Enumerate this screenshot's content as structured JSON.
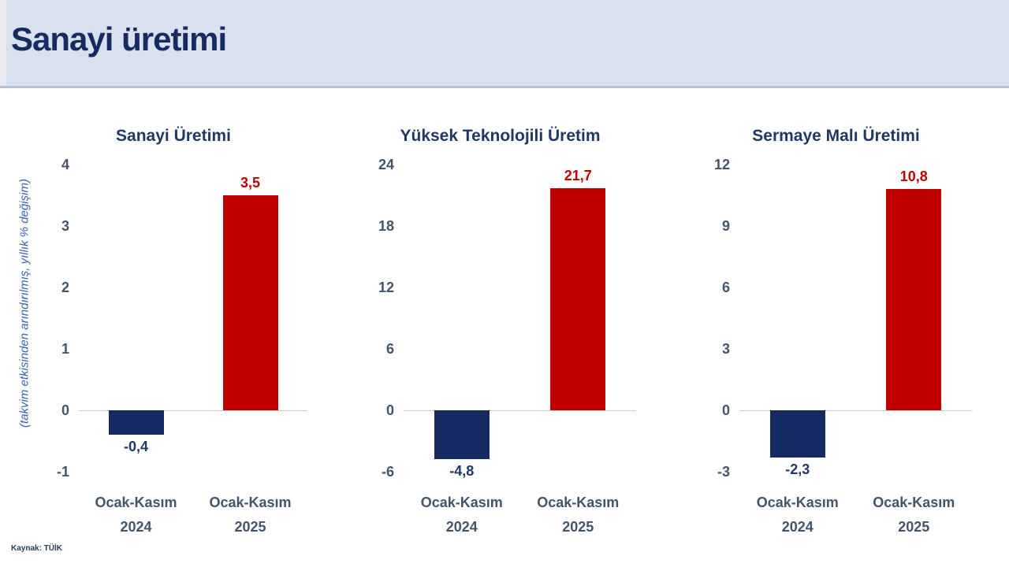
{
  "header": {
    "title": "Sanayi üretimi"
  },
  "y_axis_label": "(takvim etkisinden arındırılmış, yıllık % değişim)",
  "footer": {
    "source": "Kaynak: TÜİK"
  },
  "colors": {
    "header_bg": "#D9E0EE",
    "navy_bar": "#152A62",
    "red_bar": "#C00000",
    "title_navy": "#1F3864",
    "axis_text": "#44546A",
    "ylabel_blue": "#3563AE"
  },
  "chart_data": [
    {
      "type": "bar",
      "title": "Sanayi Üretimi",
      "categories": [
        [
          "Ocak-Kasım",
          "2024"
        ],
        [
          "Ocak-Kasım",
          "2025"
        ]
      ],
      "values": [
        -0.4,
        3.5
      ],
      "value_labels": [
        "-0,4",
        "3,5"
      ],
      "bar_colors": [
        "#152A62",
        "#C00000"
      ],
      "label_colors": [
        "#1F3864",
        "#C00000"
      ],
      "ylim": [
        -1,
        4
      ],
      "yticks": [
        4,
        3,
        2,
        1,
        0,
        -1
      ],
      "ylabel": "(takvim etkisinden arındırılmış, yıllık % değişim)",
      "grid": false,
      "legend": "none"
    },
    {
      "type": "bar",
      "title": "Yüksek Teknolojili Üretim",
      "categories": [
        [
          "Ocak-Kasım",
          "2024"
        ],
        [
          "Ocak-Kasım",
          "2025"
        ]
      ],
      "values": [
        -4.8,
        21.7
      ],
      "value_labels": [
        "-4,8",
        "21,7"
      ],
      "bar_colors": [
        "#152A62",
        "#C00000"
      ],
      "label_colors": [
        "#1F3864",
        "#C00000"
      ],
      "ylim": [
        -6,
        24
      ],
      "yticks": [
        24,
        18,
        12,
        6,
        0,
        -6
      ],
      "ylabel": "",
      "grid": false,
      "legend": "none"
    },
    {
      "type": "bar",
      "title": "Sermaye Malı Üretimi",
      "categories": [
        [
          "Ocak-Kasım",
          "2024"
        ],
        [
          "Ocak-Kasım",
          "2025"
        ]
      ],
      "values": [
        -2.3,
        10.8
      ],
      "value_labels": [
        "-2,3",
        "10,8"
      ],
      "bar_colors": [
        "#152A62",
        "#C00000"
      ],
      "label_colors": [
        "#1F3864",
        "#C00000"
      ],
      "ylim": [
        -3,
        12
      ],
      "yticks": [
        12,
        9,
        6,
        3,
        0,
        -3
      ],
      "ylabel": "",
      "grid": false,
      "legend": "none"
    }
  ]
}
